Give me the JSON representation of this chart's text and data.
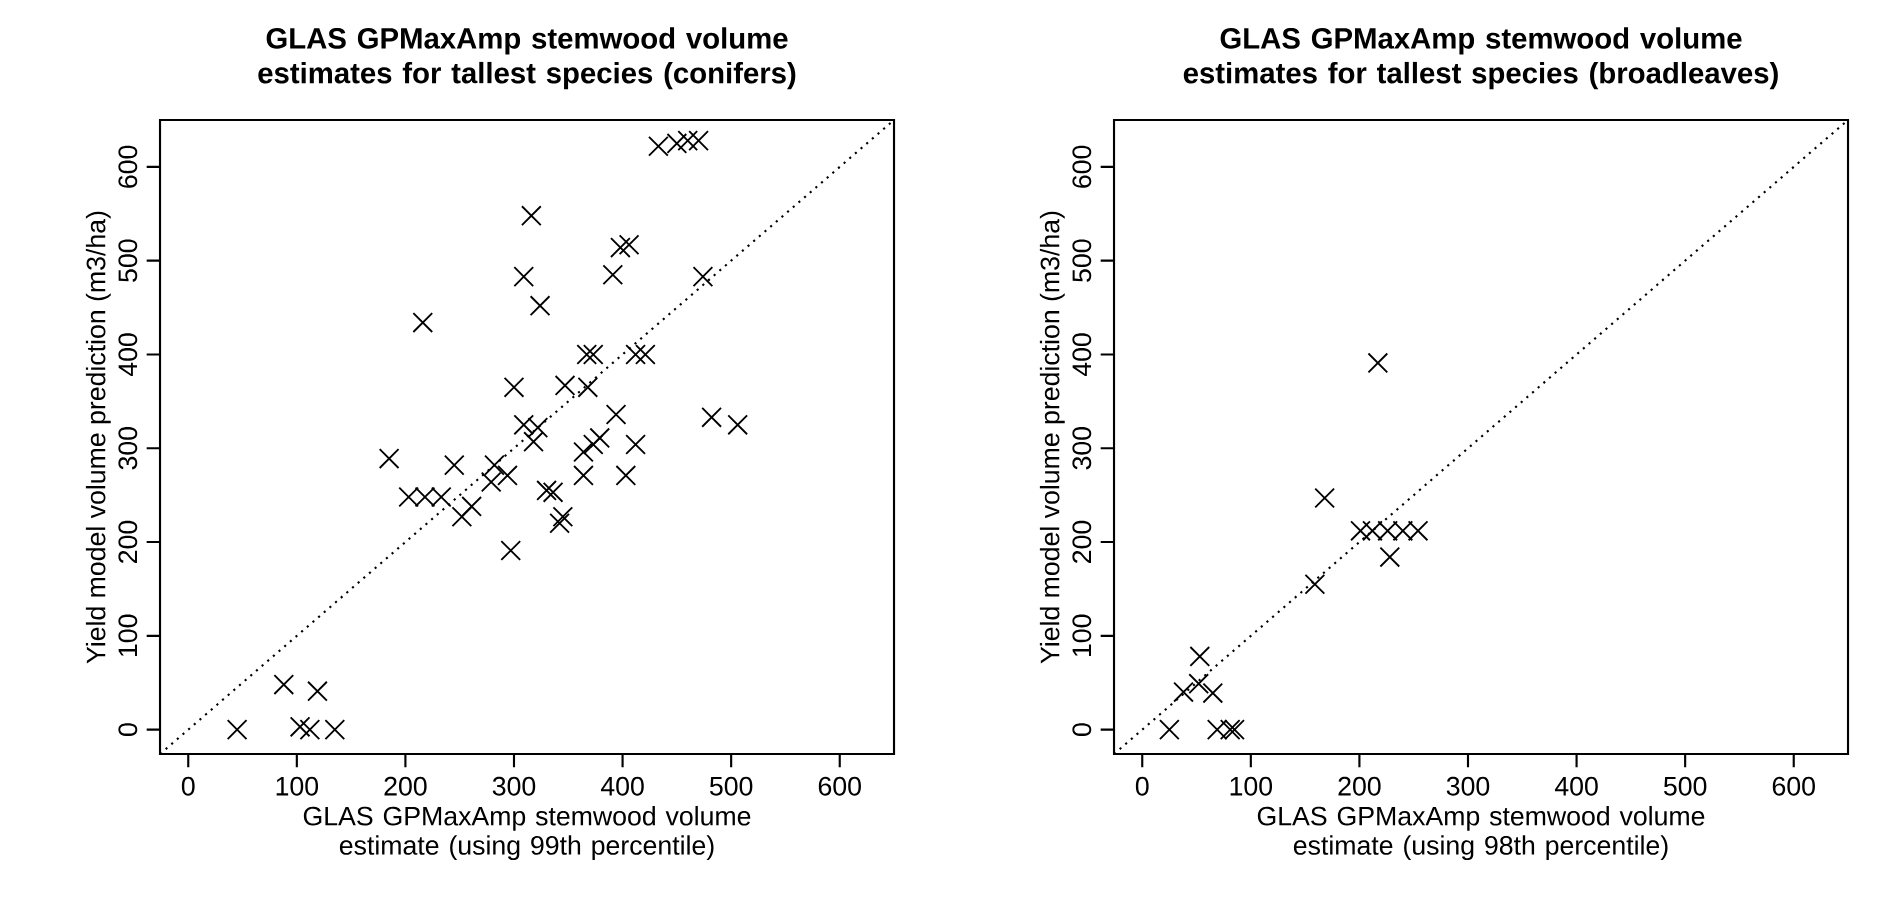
{
  "chart_data": [
    {
      "type": "scatter",
      "title": "GLAS GPMaxAmp stemwood volume estimates for tallest species (conifers)",
      "xlabel": "GLAS GPMaxAmp stemwood volume estimate (using 99th percentile)",
      "ylabel": "Yield model volume prediction (m3/ha)",
      "xlim": [
        -26,
        650
      ],
      "ylim": [
        -26,
        650
      ],
      "xticks": [
        0,
        100,
        200,
        300,
        400,
        500,
        600
      ],
      "yticks": [
        0,
        100,
        200,
        300,
        400,
        500,
        600
      ],
      "series": [
        {
          "type": "scatter",
          "marker": "cross",
          "color": "#000000",
          "x": [
            433,
            450,
            460,
            470,
            316,
            398,
            406,
            391,
            474,
            309,
            324,
            216,
            367,
            373,
            412,
            421,
            300,
            347,
            368,
            394,
            482,
            506,
            309,
            322,
            318,
            379,
            373,
            364,
            412,
            364,
            403,
            185,
            245,
            282,
            294,
            279,
            203,
            218,
            233,
            261,
            252,
            330,
            336,
            342,
            345,
            297,
            88,
            119,
            45,
            103,
            112,
            135
          ],
          "values": [
            622,
            625,
            628,
            628,
            548,
            514,
            517,
            485,
            483,
            483,
            452,
            434,
            400,
            400,
            400,
            400,
            365,
            367,
            365,
            336,
            333,
            325,
            325,
            322,
            307,
            311,
            304,
            296,
            304,
            271,
            271,
            289,
            282,
            282,
            271,
            264,
            248,
            248,
            248,
            238,
            227,
            255,
            253,
            220,
            227,
            191,
            48,
            41,
            0,
            3,
            0,
            0
          ]
        },
        {
          "type": "line",
          "marker": "none",
          "color": "#000000",
          "line_style": "dotted",
          "x": [
            -26,
            650
          ],
          "values": [
            -26,
            650
          ]
        }
      ]
    },
    {
      "type": "scatter",
      "title": "GLAS GPMaxAmp stemwood volume estimates for tallest species (broadleaves)",
      "xlabel": "GLAS GPMaxAmp stemwood volume estimate (using 98th percentile)",
      "ylabel": "Yield model volume prediction (m3/ha)",
      "xlim": [
        -26,
        650
      ],
      "ylim": [
        -26,
        650
      ],
      "xticks": [
        0,
        100,
        200,
        300,
        400,
        500,
        600
      ],
      "yticks": [
        0,
        100,
        200,
        300,
        400,
        500,
        600
      ],
      "series": [
        {
          "type": "scatter",
          "marker": "cross",
          "color": "#000000",
          "x": [
            217,
            168,
            201,
            212,
            226,
            240,
            254,
            228,
            159,
            53,
            52,
            38,
            65,
            25,
            69,
            81,
            85
          ],
          "values": [
            391,
            247,
            212,
            212,
            212,
            212,
            212,
            184,
            155,
            78,
            49,
            40,
            39,
            0,
            0,
            0,
            0
          ]
        },
        {
          "type": "line",
          "marker": "none",
          "color": "#000000",
          "line_style": "dotted",
          "x": [
            -26,
            650
          ],
          "values": [
            -26,
            650
          ]
        }
      ]
    }
  ]
}
